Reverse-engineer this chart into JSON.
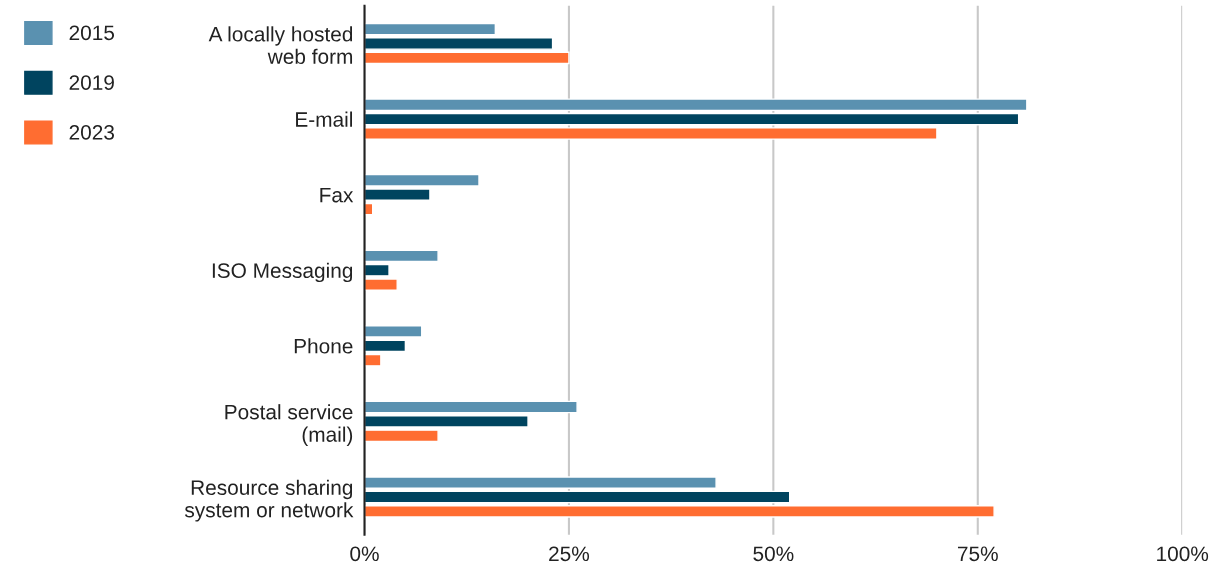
{
  "chart_data": {
    "type": "bar",
    "orientation": "horizontal",
    "categories": [
      "A locally hosted\nweb form",
      "E-mail",
      "Fax",
      "ISO Messaging",
      "Phone",
      "Postal service\n(mail)",
      "Resource sharing\nsystem or network"
    ],
    "series": [
      {
        "name": "2015",
        "color": "#5a91b0",
        "values": [
          16,
          81,
          14,
          9,
          7,
          26,
          43
        ]
      },
      {
        "name": "2019",
        "color": "#00445f",
        "values": [
          23,
          80,
          8,
          3,
          5,
          20,
          52
        ]
      },
      {
        "name": "2023",
        "color": "#ff6d31",
        "values": [
          25,
          70,
          1,
          4,
          2,
          9,
          77
        ]
      }
    ],
    "xlim": [
      0,
      100
    ],
    "xticks": [
      {
        "value": 0,
        "label": "0%"
      },
      {
        "value": 25,
        "label": "25%"
      },
      {
        "value": 50,
        "label": "50%"
      },
      {
        "value": 75,
        "label": "75%"
      },
      {
        "value": 100,
        "label": "100%"
      }
    ],
    "grid": "x",
    "legend": "top left"
  }
}
